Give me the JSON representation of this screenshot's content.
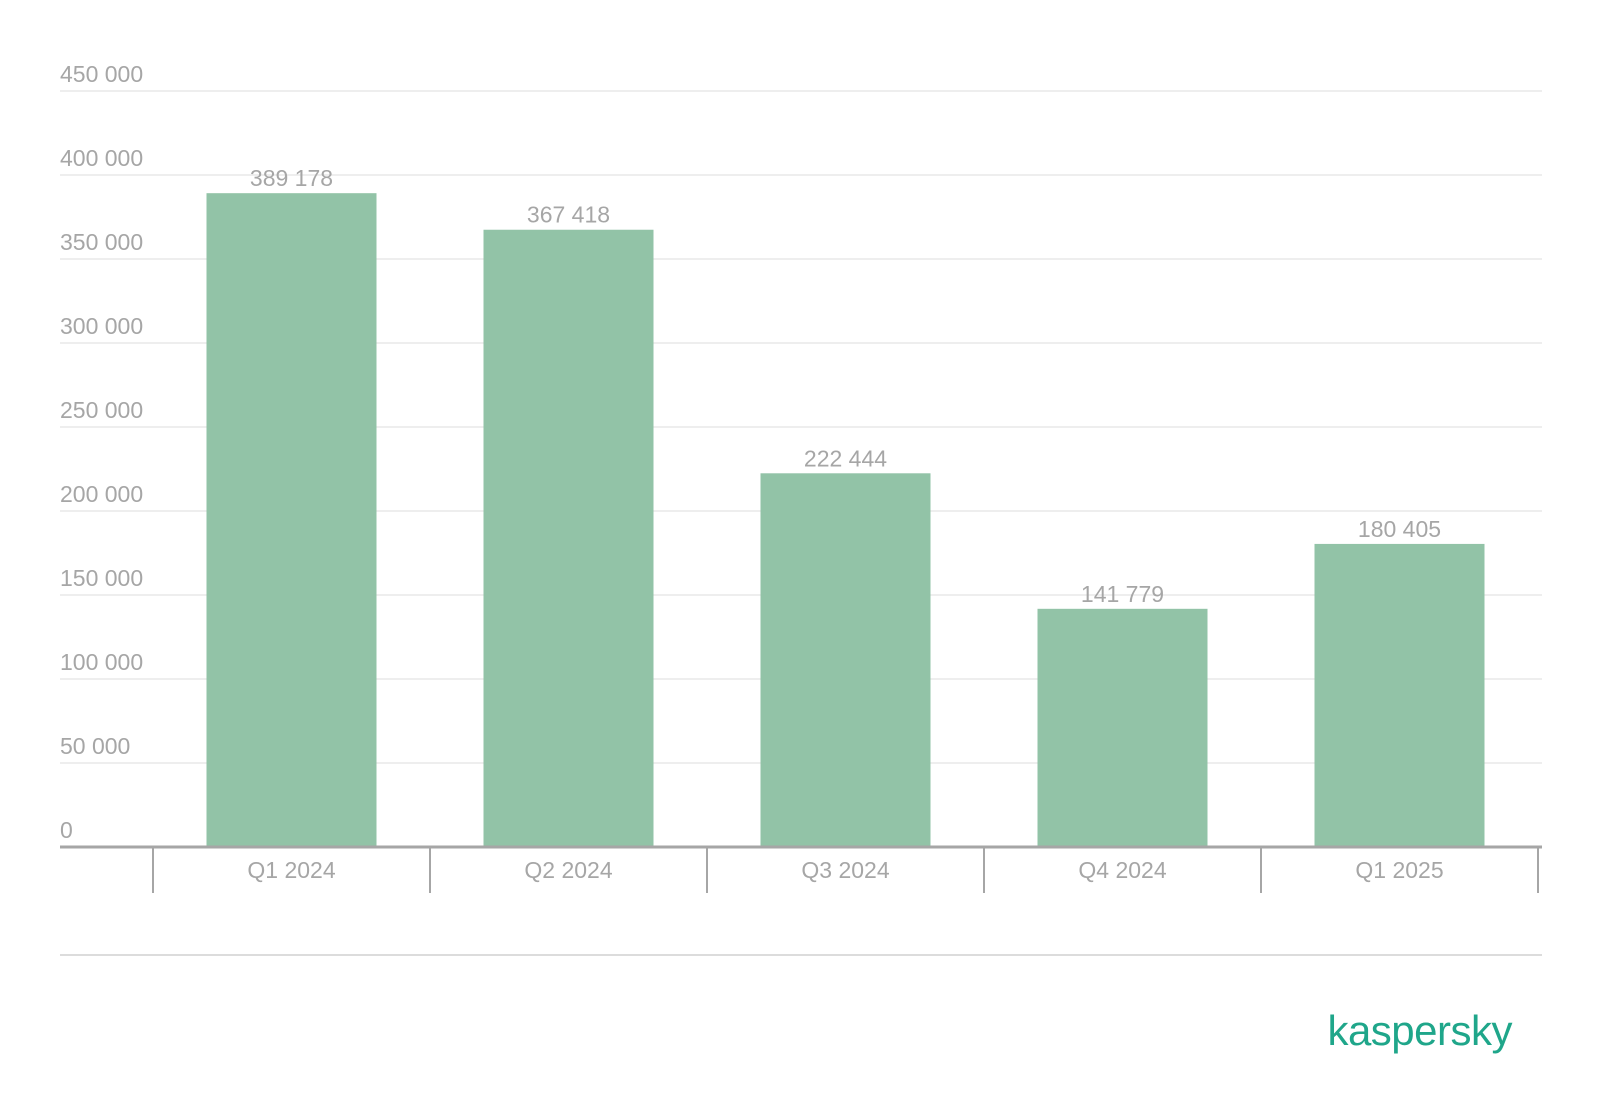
{
  "chart_data": {
    "type": "bar",
    "categories": [
      "Q1 2024",
      "Q2 2024",
      "Q3 2024",
      "Q4 2024",
      "Q1 2025"
    ],
    "values": [
      389178,
      367418,
      222444,
      141779,
      180405
    ],
    "value_labels": [
      "389 178",
      "367 418",
      "222 444",
      "141 779",
      "180 405"
    ],
    "yticks": [
      0,
      50000,
      100000,
      150000,
      200000,
      250000,
      300000,
      350000,
      400000,
      450000
    ],
    "ytick_labels": [
      "0",
      "50 000",
      "100 000",
      "150 000",
      "200 000",
      "250 000",
      "300 000",
      "350 000",
      "400 000",
      "450 000"
    ],
    "ylim": [
      0,
      450000
    ],
    "grid": true,
    "legend": "none",
    "colors": {
      "bar": "#92c3a7",
      "grid": "#e8e8e8",
      "axis": "#a6a6a6",
      "text": "#a6a6a6"
    }
  },
  "brand": {
    "name": "kaspersky",
    "color": "#1fa68a"
  }
}
